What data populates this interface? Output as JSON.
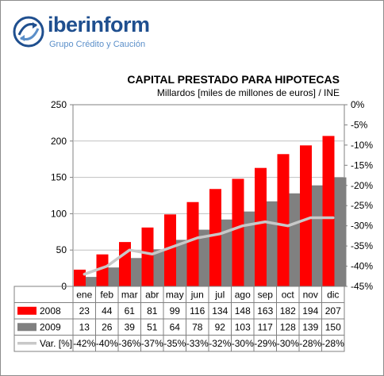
{
  "brand": {
    "name": "iberinform",
    "tagline": "Grupo Crédito y Caución"
  },
  "chart_data": {
    "type": "bar",
    "title": "CAPITAL PRESTADO PARA HIPOTECAS",
    "subtitle": "Millardos [miles de millones de euros] / INE",
    "categories": [
      "ene",
      "feb",
      "mar",
      "abr",
      "may",
      "jun",
      "jul",
      "ago",
      "sep",
      "oct",
      "nov",
      "dic"
    ],
    "series": [
      {
        "name": "2008",
        "type": "bar",
        "axis": "left",
        "color": "#ff0000",
        "values": [
          23,
          44,
          61,
          81,
          99,
          116,
          134,
          148,
          163,
          182,
          194,
          207
        ]
      },
      {
        "name": "2009",
        "type": "bar",
        "axis": "left",
        "color": "#808080",
        "values": [
          13,
          26,
          39,
          51,
          64,
          78,
          92,
          103,
          117,
          128,
          139,
          150
        ]
      },
      {
        "name": "Var. [%]",
        "type": "line",
        "axis": "right",
        "color": "#c8c8c8",
        "values": [
          -42,
          -40,
          -36,
          -37,
          -35,
          -33,
          -32,
          -30,
          -29,
          -30,
          -28,
          -28
        ]
      }
    ],
    "table_labels": {
      "2008": [
        "23",
        "44",
        "61",
        "81",
        "99",
        "116",
        "134",
        "148",
        "163",
        "182",
        "194",
        "207"
      ],
      "2009": [
        "13",
        "26",
        "39",
        "51",
        "64",
        "78",
        "92",
        "103",
        "117",
        "128",
        "139",
        "150"
      ],
      "Var. [%]": [
        "-42%",
        "-40%",
        "-36%",
        "-37%",
        "-35%",
        "-33%",
        "-32%",
        "-30%",
        "-29%",
        "-30%",
        "-28%",
        "-28%"
      ]
    },
    "ylim_left": [
      0,
      250
    ],
    "yticks_left": [
      "0",
      "50",
      "100",
      "150",
      "200",
      "250"
    ],
    "ylim_right": [
      -45,
      0
    ],
    "yticks_right": [
      "0%",
      "-5%",
      "-10%",
      "-15%",
      "-20%",
      "-25%",
      "-30%",
      "-35%",
      "-40%",
      "-45%"
    ],
    "grid": "horizontal",
    "legend": "data-table"
  }
}
